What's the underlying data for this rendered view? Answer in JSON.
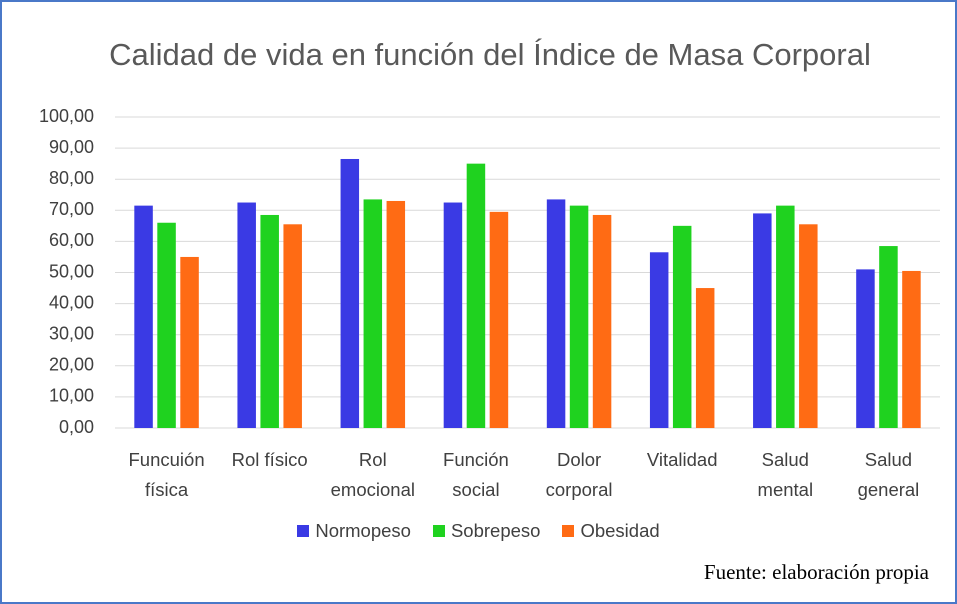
{
  "chart_data": {
    "type": "bar",
    "title": "Calidad de vida en función del Índice de Masa Corporal",
    "categories": [
      "Funcuión física",
      "Rol físico",
      "Rol emocional",
      "Función social",
      "Dolor corporal",
      "Vitalidad",
      "Salud mental",
      "Salud general"
    ],
    "series": [
      {
        "name": "Normopeso",
        "color": "#3a3ae4",
        "values": [
          71.5,
          72.5,
          86.5,
          72.5,
          73.5,
          56.5,
          69,
          51
        ]
      },
      {
        "name": "Sobrepeso",
        "color": "#1fd21f",
        "values": [
          66,
          68.5,
          73.5,
          85,
          71.5,
          65,
          71.5,
          58.5
        ]
      },
      {
        "name": "Obesidad",
        "color": "#ff6b14",
        "values": [
          55,
          65.5,
          73,
          69.5,
          68.5,
          45,
          65.5,
          50.5
        ]
      }
    ],
    "ylim": [
      0,
      100
    ],
    "yticks": [
      {
        "value": 0,
        "label": "0,00"
      },
      {
        "value": 10,
        "label": "10,00"
      },
      {
        "value": 20,
        "label": "20,00"
      },
      {
        "value": 30,
        "label": "30,00"
      },
      {
        "value": 40,
        "label": "40,00"
      },
      {
        "value": 50,
        "label": "50,00"
      },
      {
        "value": 60,
        "label": "60,00"
      },
      {
        "value": 70,
        "label": "70,00"
      },
      {
        "value": 80,
        "label": "80,00"
      },
      {
        "value": 90,
        "label": "90,00"
      },
      {
        "value": 100,
        "label": "100,00"
      }
    ],
    "grid": true,
    "legend": "bottom",
    "source": "Fuente: elaboración propia"
  }
}
